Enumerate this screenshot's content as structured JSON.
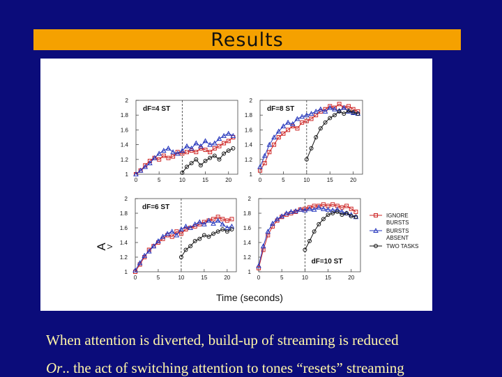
{
  "slide": {
    "title": "Results",
    "caption1": "When attention is diverted, build-up of streaming is reduced",
    "caption2_italic": "Or",
    "caption2_rest": ".. the act of switching attention to tones “resets” streaming"
  },
  "colors": {
    "ignore": "#cc2222",
    "absent": "#2233bb",
    "two": "#111111"
  },
  "chart_data": {
    "type": "line",
    "xlabel": "Time (seconds)",
    "ylabel": "A",
    "ylabel_sub": "V",
    "legend": [
      {
        "name": "IGNORE BURSTS",
        "lines": [
          "IGNORE",
          "BURSTS"
        ],
        "marker": "square",
        "key": "ignore"
      },
      {
        "name": "BURSTS ABSENT",
        "lines": [
          "BURSTS",
          "ABSENT"
        ],
        "marker": "triangle",
        "key": "absent"
      },
      {
        "name": "TWO TASKS",
        "lines": [
          "TWO TASKS"
        ],
        "marker": "circle",
        "key": "two"
      }
    ],
    "legend_position": "right of bottom-right panel",
    "panels": [
      {
        "label": "dF=4 ST",
        "label_position": "top-left",
        "xlim": [
          0,
          22
        ],
        "ylim": [
          1,
          2
        ],
        "xticks": [
          "0",
          "5",
          "10",
          "15",
          "20"
        ],
        "yticks": [
          "1",
          "1.2",
          "1.4",
          "1.6",
          "1.8",
          "2"
        ],
        "switch_x": 10,
        "series": [
          {
            "key": "ignore",
            "x": [
              0,
              1,
              2,
              3,
              4,
              5,
              6,
              7,
              8,
              9,
              10,
              11,
              12,
              13,
              14,
              15,
              16,
              17,
              18,
              19,
              20,
              21
            ],
            "y": [
              1.0,
              1.05,
              1.12,
              1.18,
              1.22,
              1.2,
              1.25,
              1.22,
              1.24,
              1.3,
              1.28,
              1.3,
              1.32,
              1.3,
              1.35,
              1.33,
              1.3,
              1.35,
              1.38,
              1.42,
              1.45,
              1.5
            ]
          },
          {
            "key": "absent",
            "x": [
              0,
              1,
              2,
              3,
              4,
              5,
              6,
              7,
              8,
              9,
              10,
              11,
              12,
              13,
              14,
              15,
              16,
              17,
              18,
              19,
              20,
              21
            ],
            "y": [
              1.0,
              1.05,
              1.1,
              1.15,
              1.22,
              1.28,
              1.32,
              1.35,
              1.3,
              1.28,
              1.32,
              1.38,
              1.35,
              1.42,
              1.38,
              1.45,
              1.4,
              1.42,
              1.48,
              1.52,
              1.55,
              1.52
            ]
          },
          {
            "key": "two",
            "x": [
              10,
              11,
              12,
              13,
              14,
              15,
              16,
              17,
              18,
              19,
              20,
              21
            ],
            "y": [
              1.02,
              1.1,
              1.15,
              1.2,
              1.12,
              1.18,
              1.22,
              1.25,
              1.2,
              1.28,
              1.32,
              1.35
            ]
          }
        ]
      },
      {
        "label": "dF=8 ST",
        "label_position": "top-left",
        "xlim": [
          0,
          22
        ],
        "ylim": [
          1,
          2
        ],
        "xticks": [
          "0",
          "5",
          "10",
          "15",
          "20"
        ],
        "yticks": [
          "1",
          "1.2",
          "1.4",
          "1.6",
          "1.8",
          "2"
        ],
        "switch_x": 10,
        "series": [
          {
            "key": "ignore",
            "x": [
              0,
              1,
              2,
              3,
              4,
              5,
              6,
              7,
              8,
              9,
              10,
              11,
              12,
              13,
              14,
              15,
              16,
              17,
              18,
              19,
              20,
              21
            ],
            "y": [
              1.05,
              1.15,
              1.3,
              1.4,
              1.5,
              1.55,
              1.6,
              1.65,
              1.62,
              1.7,
              1.72,
              1.75,
              1.8,
              1.85,
              1.88,
              1.92,
              1.9,
              1.95,
              1.9,
              1.92,
              1.88,
              1.85
            ]
          },
          {
            "key": "absent",
            "x": [
              0,
              1,
              2,
              3,
              4,
              5,
              6,
              7,
              8,
              9,
              10,
              11,
              12,
              13,
              14,
              15,
              16,
              17,
              18,
              19,
              20,
              21
            ],
            "y": [
              1.1,
              1.25,
              1.4,
              1.5,
              1.58,
              1.65,
              1.7,
              1.68,
              1.75,
              1.78,
              1.8,
              1.82,
              1.85,
              1.88,
              1.85,
              1.9,
              1.88,
              1.86,
              1.9,
              1.85,
              1.83,
              1.82
            ]
          },
          {
            "key": "two",
            "x": [
              10,
              11,
              12,
              13,
              14,
              15,
              16,
              17,
              18,
              19,
              20,
              21
            ],
            "y": [
              1.2,
              1.35,
              1.5,
              1.62,
              1.7,
              1.76,
              1.8,
              1.85,
              1.82,
              1.86,
              1.84,
              1.82
            ]
          }
        ]
      },
      {
        "label": "dF=6 ST",
        "label_position": "top-left",
        "xlim": [
          0,
          22
        ],
        "ylim": [
          1,
          2
        ],
        "xticks": [
          "0",
          "5",
          "10",
          "15",
          "20"
        ],
        "yticks": [
          "1",
          "1.2",
          "1.4",
          "1.6",
          "1.8",
          "2"
        ],
        "switch_x": 10,
        "series": [
          {
            "key": "ignore",
            "x": [
              0,
              1,
              2,
              3,
              4,
              5,
              6,
              7,
              8,
              9,
              10,
              11,
              12,
              13,
              14,
              15,
              16,
              17,
              18,
              19,
              20,
              21
            ],
            "y": [
              1.0,
              1.1,
              1.2,
              1.3,
              1.35,
              1.4,
              1.45,
              1.5,
              1.48,
              1.55,
              1.52,
              1.58,
              1.6,
              1.62,
              1.65,
              1.68,
              1.7,
              1.72,
              1.75,
              1.72,
              1.7,
              1.72
            ]
          },
          {
            "key": "absent",
            "x": [
              0,
              1,
              2,
              3,
              4,
              5,
              6,
              7,
              8,
              9,
              10,
              11,
              12,
              13,
              14,
              15,
              16,
              17,
              18,
              19,
              20,
              21
            ],
            "y": [
              1.02,
              1.12,
              1.22,
              1.28,
              1.35,
              1.42,
              1.48,
              1.52,
              1.55,
              1.5,
              1.58,
              1.62,
              1.6,
              1.65,
              1.68,
              1.65,
              1.7,
              1.66,
              1.7,
              1.65,
              1.6,
              1.62
            ]
          },
          {
            "key": "two",
            "x": [
              10,
              11,
              12,
              13,
              14,
              15,
              16,
              17,
              18,
              19,
              20,
              21
            ],
            "y": [
              1.2,
              1.3,
              1.35,
              1.42,
              1.45,
              1.5,
              1.48,
              1.52,
              1.55,
              1.58,
              1.55,
              1.58
            ]
          }
        ]
      },
      {
        "label": "dF=10 ST",
        "label_position": "bottom-right",
        "xlim": [
          0,
          22
        ],
        "ylim": [
          1,
          2
        ],
        "xticks": [
          "0",
          "5",
          "10",
          "15",
          "20"
        ],
        "yticks": [
          "1",
          "1.2",
          "1.4",
          "1.6",
          "1.8",
          "2"
        ],
        "switch_x": 10,
        "series": [
          {
            "key": "ignore",
            "x": [
              0,
              1,
              2,
              3,
              4,
              5,
              6,
              7,
              8,
              9,
              10,
              11,
              12,
              13,
              14,
              15,
              16,
              17,
              18,
              19,
              20,
              21
            ],
            "y": [
              1.05,
              1.3,
              1.5,
              1.62,
              1.7,
              1.75,
              1.78,
              1.8,
              1.82,
              1.85,
              1.86,
              1.88,
              1.9,
              1.9,
              1.92,
              1.9,
              1.92,
              1.9,
              1.88,
              1.9,
              1.86,
              1.82
            ]
          },
          {
            "key": "absent",
            "x": [
              0,
              1,
              2,
              3,
              4,
              5,
              6,
              7,
              8,
              9,
              10,
              11,
              12,
              13,
              14,
              15,
              16,
              17,
              18,
              19,
              20,
              21
            ],
            "y": [
              1.08,
              1.35,
              1.55,
              1.66,
              1.72,
              1.76,
              1.8,
              1.82,
              1.83,
              1.85,
              1.84,
              1.86,
              1.85,
              1.88,
              1.86,
              1.85,
              1.84,
              1.85,
              1.82,
              1.8,
              1.78,
              1.75
            ]
          },
          {
            "key": "two",
            "x": [
              10,
              11,
              12,
              13,
              14,
              15,
              16,
              17,
              18,
              19,
              20,
              21
            ],
            "y": [
              1.3,
              1.42,
              1.55,
              1.65,
              1.72,
              1.78,
              1.8,
              1.82,
              1.78,
              1.8,
              1.76,
              1.75
            ]
          }
        ]
      }
    ]
  }
}
